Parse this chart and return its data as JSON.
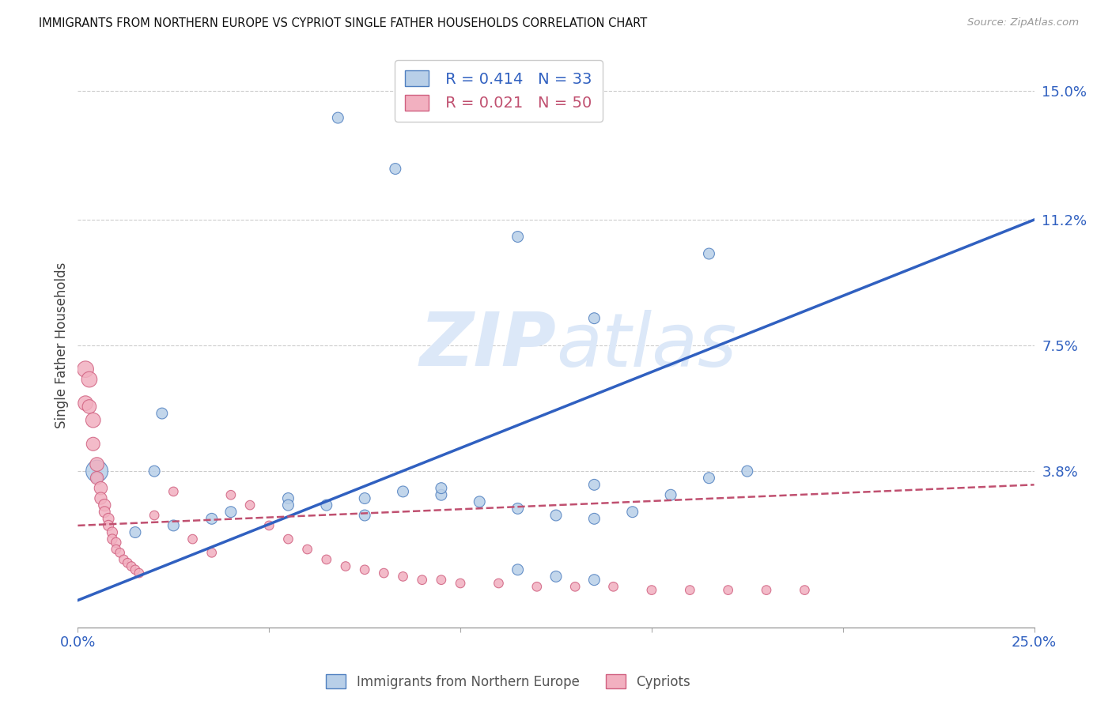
{
  "title": "IMMIGRANTS FROM NORTHERN EUROPE VS CYPRIOT SINGLE FATHER HOUSEHOLDS CORRELATION CHART",
  "source": "Source: ZipAtlas.com",
  "xlabel_blue": "Immigrants from Northern Europe",
  "xlabel_pink": "Cypriots",
  "ylabel": "Single Father Households",
  "x_min": 0.0,
  "x_max": 0.25,
  "y_min": -0.008,
  "y_max": 0.158,
  "y_tick_labels_right": [
    "15.0%",
    "11.2%",
    "7.5%",
    "3.8%"
  ],
  "y_tick_values_right": [
    0.15,
    0.112,
    0.075,
    0.038
  ],
  "legend_blue_R": "0.414",
  "legend_blue_N": "33",
  "legend_pink_R": "0.021",
  "legend_pink_N": "50",
  "blue_fill": "#b8cfe8",
  "blue_edge": "#5080c0",
  "blue_line": "#3060c0",
  "pink_fill": "#f2b0c0",
  "pink_edge": "#d06080",
  "pink_line": "#c05070",
  "watermark": "#dce8f8",
  "blue_x": [
    0.068,
    0.083,
    0.115,
    0.005,
    0.005,
    0.022,
    0.135,
    0.165,
    0.02,
    0.055,
    0.065,
    0.075,
    0.085,
    0.095,
    0.105,
    0.115,
    0.125,
    0.135,
    0.145,
    0.155,
    0.165,
    0.175,
    0.135,
    0.095,
    0.075,
    0.055,
    0.04,
    0.035,
    0.025,
    0.015,
    0.115,
    0.125,
    0.135
  ],
  "blue_y": [
    0.142,
    0.127,
    0.107,
    0.038,
    0.036,
    0.055,
    0.083,
    0.102,
    0.038,
    0.03,
    0.028,
    0.025,
    0.032,
    0.031,
    0.029,
    0.027,
    0.025,
    0.024,
    0.026,
    0.031,
    0.036,
    0.038,
    0.034,
    0.033,
    0.03,
    0.028,
    0.026,
    0.024,
    0.022,
    0.02,
    0.009,
    0.007,
    0.006
  ],
  "blue_sizes": [
    100,
    100,
    100,
    400,
    100,
    100,
    100,
    100,
    100,
    100,
    100,
    100,
    100,
    100,
    100,
    100,
    100,
    100,
    100,
    100,
    100,
    100,
    100,
    100,
    100,
    100,
    100,
    100,
    100,
    100,
    100,
    100,
    100
  ],
  "pink_x": [
    0.002,
    0.002,
    0.003,
    0.003,
    0.004,
    0.004,
    0.005,
    0.005,
    0.006,
    0.006,
    0.007,
    0.007,
    0.008,
    0.008,
    0.009,
    0.009,
    0.01,
    0.01,
    0.011,
    0.012,
    0.013,
    0.014,
    0.015,
    0.016,
    0.02,
    0.025,
    0.03,
    0.035,
    0.04,
    0.045,
    0.05,
    0.055,
    0.06,
    0.065,
    0.07,
    0.075,
    0.08,
    0.085,
    0.09,
    0.095,
    0.1,
    0.11,
    0.12,
    0.13,
    0.14,
    0.15,
    0.16,
    0.17,
    0.18,
    0.19
  ],
  "pink_y": [
    0.068,
    0.058,
    0.065,
    0.057,
    0.053,
    0.046,
    0.04,
    0.036,
    0.033,
    0.03,
    0.028,
    0.026,
    0.024,
    0.022,
    0.02,
    0.018,
    0.017,
    0.015,
    0.014,
    0.012,
    0.011,
    0.01,
    0.009,
    0.008,
    0.025,
    0.032,
    0.018,
    0.014,
    0.031,
    0.028,
    0.022,
    0.018,
    0.015,
    0.012,
    0.01,
    0.009,
    0.008,
    0.007,
    0.006,
    0.006,
    0.005,
    0.005,
    0.004,
    0.004,
    0.004,
    0.003,
    0.003,
    0.003,
    0.003,
    0.003
  ],
  "pink_sizes": [
    220,
    180,
    200,
    160,
    180,
    150,
    160,
    140,
    140,
    120,
    120,
    100,
    100,
    90,
    90,
    80,
    80,
    70,
    70,
    70,
    70,
    70,
    70,
    70,
    70,
    70,
    70,
    70,
    70,
    70,
    70,
    70,
    70,
    70,
    70,
    70,
    70,
    70,
    70,
    70,
    70,
    70,
    70,
    70,
    70,
    70,
    70,
    70,
    70,
    70
  ],
  "blue_line_x0": 0.0,
  "blue_line_x1": 0.25,
  "blue_line_y0": 0.0,
  "blue_line_y1": 0.112,
  "pink_line_x0": 0.0,
  "pink_line_x1": 0.25,
  "pink_line_y0": 0.022,
  "pink_line_y1": 0.034
}
